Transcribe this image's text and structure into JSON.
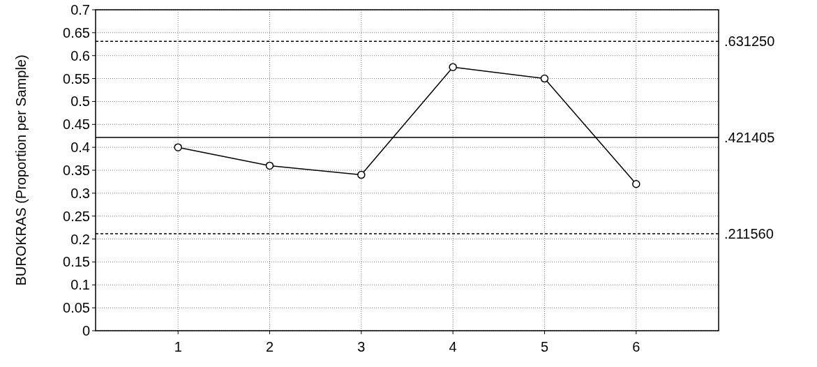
{
  "chart_data": {
    "type": "line",
    "ylabel": "BUROKRAS (Proportion per Sample)",
    "categories": [
      "1",
      "2",
      "3",
      "4",
      "5",
      "6"
    ],
    "series": [
      {
        "color": "#000000",
        "values": [
          0.4,
          0.36,
          0.34,
          0.575,
          0.55,
          0.32
        ]
      }
    ],
    "ylim": [
      0,
      0.7
    ],
    "yticks": [
      0,
      0.05,
      0.1,
      0.15,
      0.2,
      0.25,
      0.3,
      0.35,
      0.4,
      0.45,
      0.5,
      0.55,
      0.6,
      0.65,
      0.7
    ],
    "grid": true,
    "marker": "circle",
    "line_style": "solid",
    "ref_lines": [
      {
        "axis": "y",
        "value": 0.63125,
        "label": ".631250",
        "line_style": "dashed"
      },
      {
        "axis": "y",
        "value": 0.421405,
        "label": ".421405",
        "line_style": "solid"
      },
      {
        "axis": "y",
        "value": 0.21156,
        "label": ".211560",
        "line_style": "dashed"
      }
    ]
  }
}
